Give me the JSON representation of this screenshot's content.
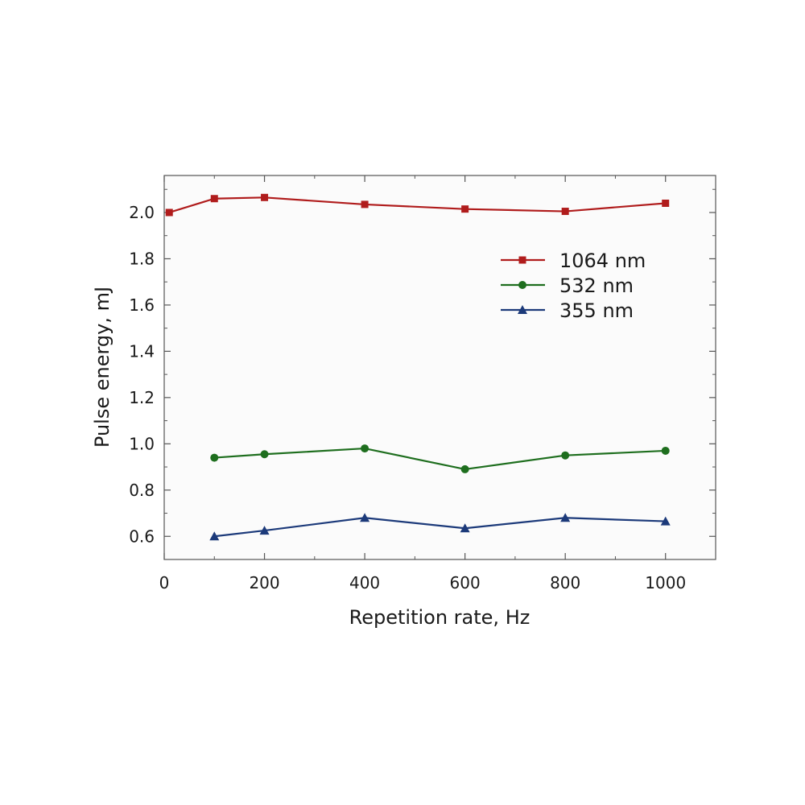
{
  "chart_data": {
    "type": "line",
    "title": "",
    "xlabel": "Repetition rate, Hz",
    "ylabel": "Pulse energy, mJ",
    "xlim": [
      0,
      1100
    ],
    "ylim": [
      0.5,
      2.16
    ],
    "xticks": [
      0,
      200,
      400,
      600,
      800,
      1000
    ],
    "yticks": [
      0.6,
      0.8,
      1.0,
      1.2,
      1.4,
      1.6,
      1.8,
      2.0
    ],
    "xtick_labels": [
      "0",
      "200",
      "400",
      "600",
      "800",
      "1000"
    ],
    "ytick_labels": [
      "0.6",
      "0.8",
      "1.0",
      "1.2",
      "1.4",
      "1.6",
      "1.8",
      "2.0"
    ],
    "grid": false,
    "legend_position": "upper-right",
    "series": [
      {
        "name": "1064 nm",
        "color": "#b01c1c",
        "marker": "square",
        "x": [
          10,
          100,
          200,
          400,
          600,
          800,
          1000
        ],
        "y": [
          2.0,
          2.06,
          2.065,
          2.035,
          2.015,
          2.005,
          2.04
        ]
      },
      {
        "name": "532 nm",
        "color": "#1e6e1e",
        "marker": "circle",
        "x": [
          100,
          200,
          400,
          600,
          800,
          1000
        ],
        "y": [
          0.94,
          0.955,
          0.98,
          0.89,
          0.95,
          0.97
        ]
      },
      {
        "name": "355 nm",
        "color": "#1c3a7a",
        "marker": "triangle",
        "x": [
          100,
          200,
          400,
          600,
          800,
          1000
        ],
        "y": [
          0.6,
          0.625,
          0.68,
          0.635,
          0.68,
          0.665
        ]
      }
    ]
  }
}
